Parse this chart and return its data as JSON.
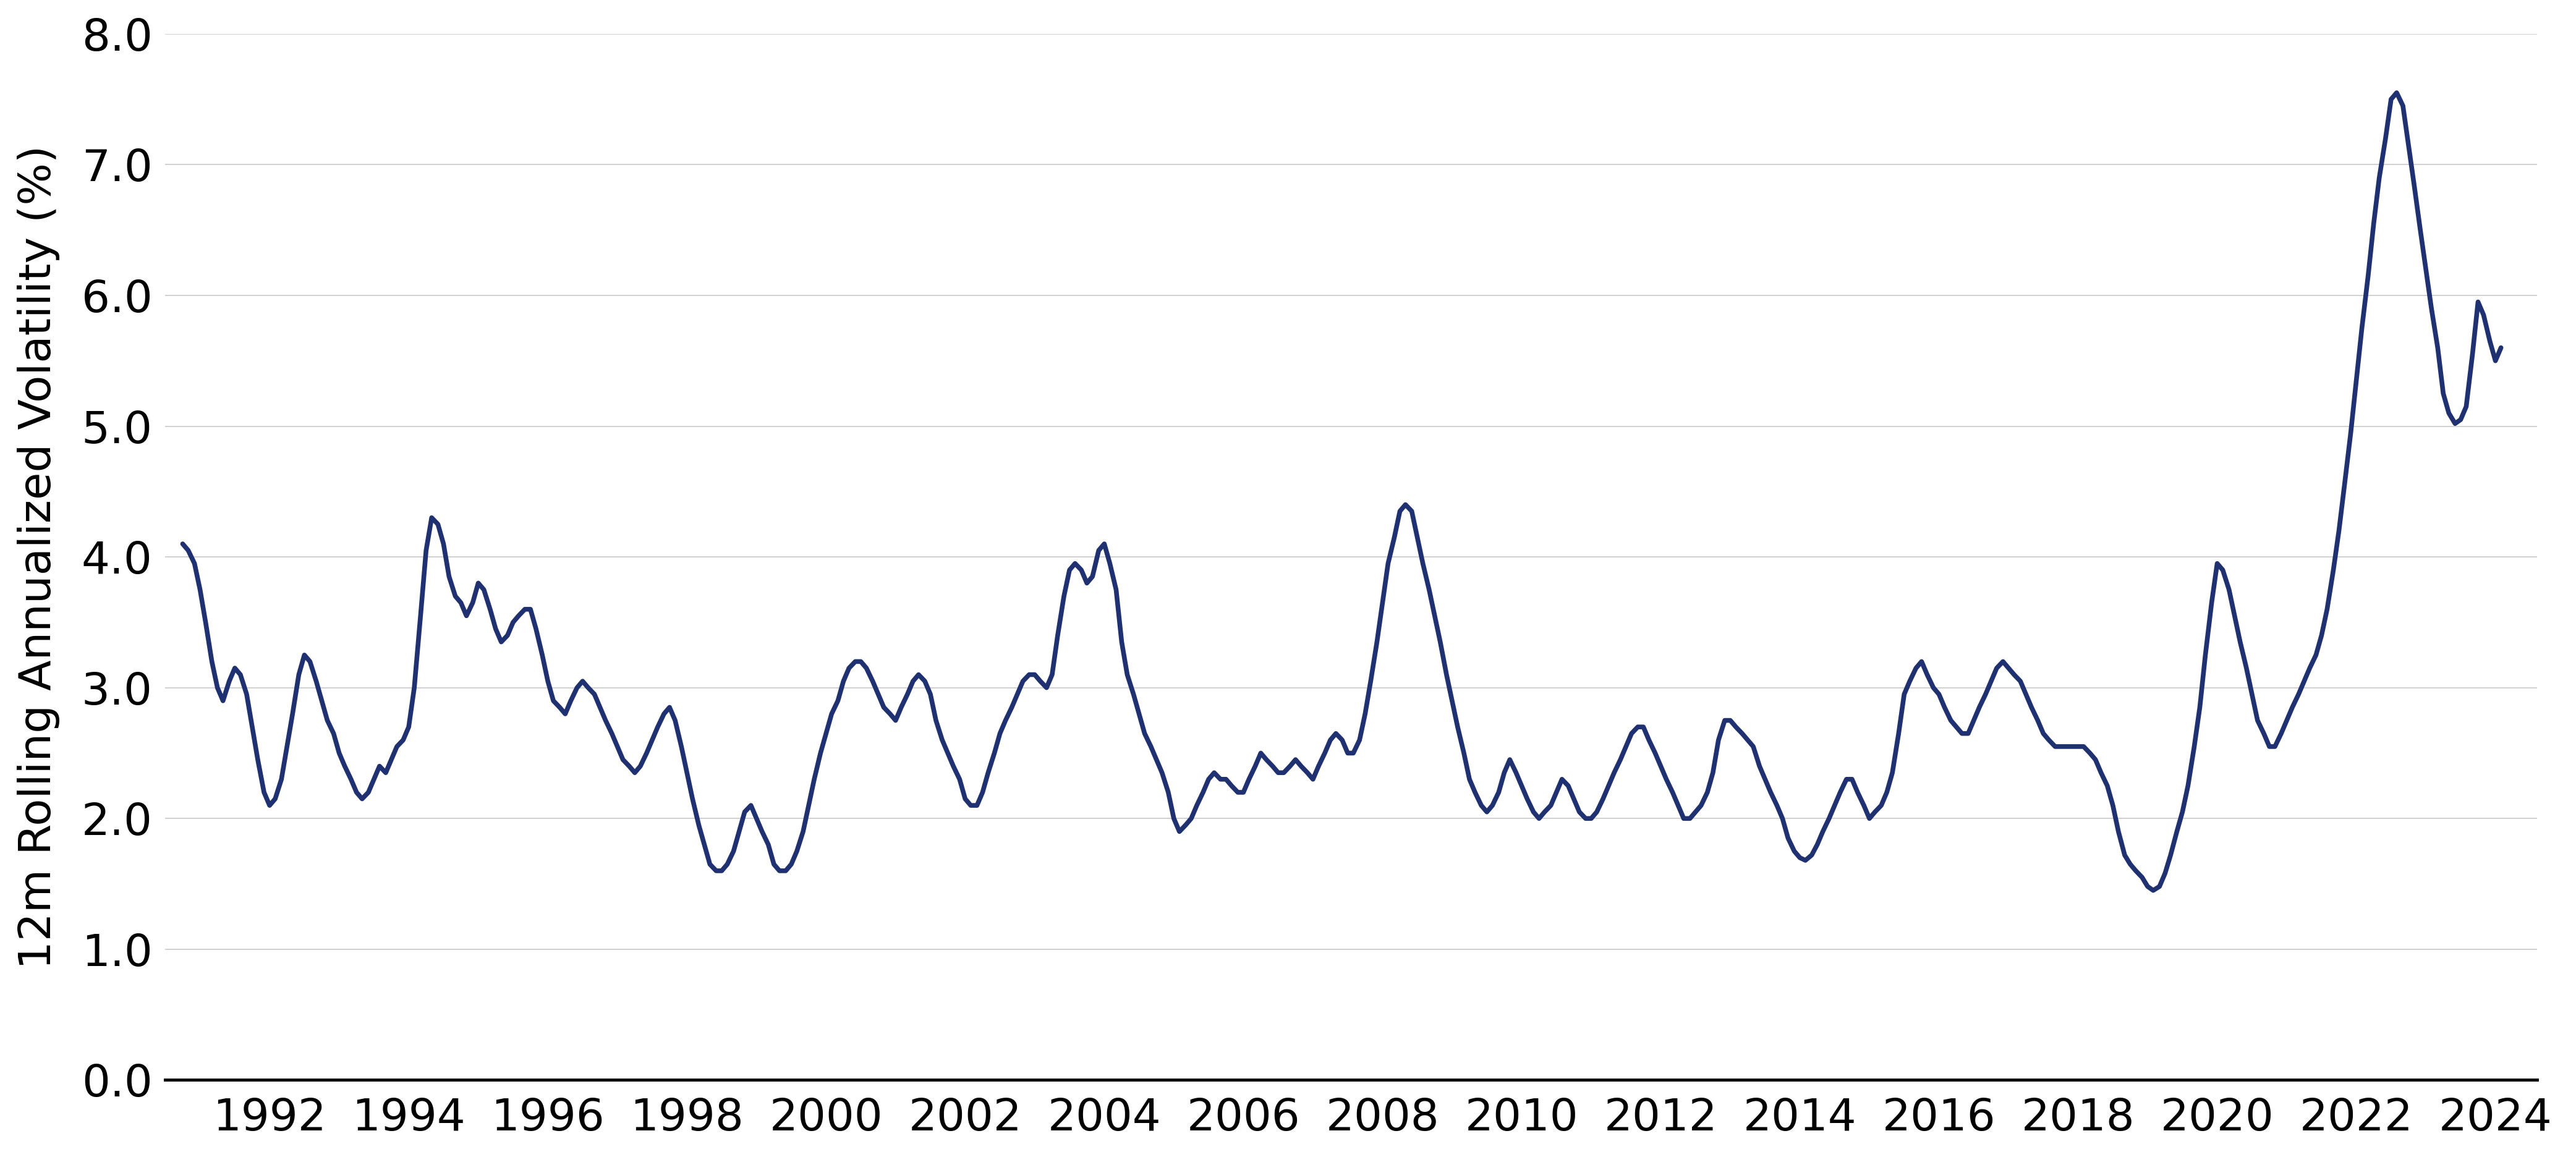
{
  "ylabel": "12m Rolling Annualized Volatility (%)",
  "line_color": "#1f3170",
  "line_width": 5.5,
  "background_color": "#ffffff",
  "grid_color": "#c8c8c8",
  "ylim": [
    0.0,
    8.0
  ],
  "yticks": [
    0.0,
    1.0,
    2.0,
    3.0,
    4.0,
    5.0,
    6.0,
    7.0,
    8.0
  ],
  "xlim_start": 1990.5,
  "xlim_end": 2024.6,
  "xtick_years": [
    1992,
    1994,
    1996,
    1998,
    2000,
    2002,
    2004,
    2006,
    2008,
    2010,
    2012,
    2014,
    2016,
    2018,
    2020,
    2022,
    2024
  ],
  "data": [
    [
      1990.75,
      4.1
    ],
    [
      1990.83,
      4.05
    ],
    [
      1990.92,
      3.95
    ],
    [
      1991.0,
      3.75
    ],
    [
      1991.08,
      3.5
    ],
    [
      1991.17,
      3.2
    ],
    [
      1991.25,
      3.0
    ],
    [
      1991.33,
      2.9
    ],
    [
      1991.42,
      3.05
    ],
    [
      1991.5,
      3.15
    ],
    [
      1991.58,
      3.1
    ],
    [
      1991.67,
      2.95
    ],
    [
      1991.75,
      2.7
    ],
    [
      1991.83,
      2.45
    ],
    [
      1991.92,
      2.2
    ],
    [
      1992.0,
      2.1
    ],
    [
      1992.08,
      2.15
    ],
    [
      1992.17,
      2.3
    ],
    [
      1992.25,
      2.55
    ],
    [
      1992.33,
      2.8
    ],
    [
      1992.42,
      3.1
    ],
    [
      1992.5,
      3.25
    ],
    [
      1992.58,
      3.2
    ],
    [
      1992.67,
      3.05
    ],
    [
      1992.75,
      2.9
    ],
    [
      1992.83,
      2.75
    ],
    [
      1992.92,
      2.65
    ],
    [
      1993.0,
      2.5
    ],
    [
      1993.08,
      2.4
    ],
    [
      1993.17,
      2.3
    ],
    [
      1993.25,
      2.2
    ],
    [
      1993.33,
      2.15
    ],
    [
      1993.42,
      2.2
    ],
    [
      1993.5,
      2.3
    ],
    [
      1993.58,
      2.4
    ],
    [
      1993.67,
      2.35
    ],
    [
      1993.75,
      2.45
    ],
    [
      1993.83,
      2.55
    ],
    [
      1993.92,
      2.6
    ],
    [
      1994.0,
      2.7
    ],
    [
      1994.08,
      3.0
    ],
    [
      1994.17,
      3.55
    ],
    [
      1994.25,
      4.05
    ],
    [
      1994.33,
      4.3
    ],
    [
      1994.42,
      4.25
    ],
    [
      1994.5,
      4.1
    ],
    [
      1994.58,
      3.85
    ],
    [
      1994.67,
      3.7
    ],
    [
      1994.75,
      3.65
    ],
    [
      1994.83,
      3.55
    ],
    [
      1994.92,
      3.65
    ],
    [
      1995.0,
      3.8
    ],
    [
      1995.08,
      3.75
    ],
    [
      1995.17,
      3.6
    ],
    [
      1995.25,
      3.45
    ],
    [
      1995.33,
      3.35
    ],
    [
      1995.42,
      3.4
    ],
    [
      1995.5,
      3.5
    ],
    [
      1995.58,
      3.55
    ],
    [
      1995.67,
      3.6
    ],
    [
      1995.75,
      3.6
    ],
    [
      1995.83,
      3.45
    ],
    [
      1995.92,
      3.25
    ],
    [
      1996.0,
      3.05
    ],
    [
      1996.08,
      2.9
    ],
    [
      1996.17,
      2.85
    ],
    [
      1996.25,
      2.8
    ],
    [
      1996.33,
      2.9
    ],
    [
      1996.42,
      3.0
    ],
    [
      1996.5,
      3.05
    ],
    [
      1996.58,
      3.0
    ],
    [
      1996.67,
      2.95
    ],
    [
      1996.75,
      2.85
    ],
    [
      1996.83,
      2.75
    ],
    [
      1996.92,
      2.65
    ],
    [
      1997.0,
      2.55
    ],
    [
      1997.08,
      2.45
    ],
    [
      1997.17,
      2.4
    ],
    [
      1997.25,
      2.35
    ],
    [
      1997.33,
      2.4
    ],
    [
      1997.42,
      2.5
    ],
    [
      1997.5,
      2.6
    ],
    [
      1997.58,
      2.7
    ],
    [
      1997.67,
      2.8
    ],
    [
      1997.75,
      2.85
    ],
    [
      1997.83,
      2.75
    ],
    [
      1997.92,
      2.55
    ],
    [
      1998.0,
      2.35
    ],
    [
      1998.08,
      2.15
    ],
    [
      1998.17,
      1.95
    ],
    [
      1998.25,
      1.8
    ],
    [
      1998.33,
      1.65
    ],
    [
      1998.42,
      1.6
    ],
    [
      1998.5,
      1.6
    ],
    [
      1998.58,
      1.65
    ],
    [
      1998.67,
      1.75
    ],
    [
      1998.75,
      1.9
    ],
    [
      1998.83,
      2.05
    ],
    [
      1998.92,
      2.1
    ],
    [
      1999.0,
      2.0
    ],
    [
      1999.08,
      1.9
    ],
    [
      1999.17,
      1.8
    ],
    [
      1999.25,
      1.65
    ],
    [
      1999.33,
      1.6
    ],
    [
      1999.42,
      1.6
    ],
    [
      1999.5,
      1.65
    ],
    [
      1999.58,
      1.75
    ],
    [
      1999.67,
      1.9
    ],
    [
      1999.75,
      2.1
    ],
    [
      1999.83,
      2.3
    ],
    [
      1999.92,
      2.5
    ],
    [
      2000.0,
      2.65
    ],
    [
      2000.08,
      2.8
    ],
    [
      2000.17,
      2.9
    ],
    [
      2000.25,
      3.05
    ],
    [
      2000.33,
      3.15
    ],
    [
      2000.42,
      3.2
    ],
    [
      2000.5,
      3.2
    ],
    [
      2000.58,
      3.15
    ],
    [
      2000.67,
      3.05
    ],
    [
      2000.75,
      2.95
    ],
    [
      2000.83,
      2.85
    ],
    [
      2000.92,
      2.8
    ],
    [
      2001.0,
      2.75
    ],
    [
      2001.08,
      2.85
    ],
    [
      2001.17,
      2.95
    ],
    [
      2001.25,
      3.05
    ],
    [
      2001.33,
      3.1
    ],
    [
      2001.42,
      3.05
    ],
    [
      2001.5,
      2.95
    ],
    [
      2001.58,
      2.75
    ],
    [
      2001.67,
      2.6
    ],
    [
      2001.75,
      2.5
    ],
    [
      2001.83,
      2.4
    ],
    [
      2001.92,
      2.3
    ],
    [
      2002.0,
      2.15
    ],
    [
      2002.08,
      2.1
    ],
    [
      2002.17,
      2.1
    ],
    [
      2002.25,
      2.2
    ],
    [
      2002.33,
      2.35
    ],
    [
      2002.42,
      2.5
    ],
    [
      2002.5,
      2.65
    ],
    [
      2002.58,
      2.75
    ],
    [
      2002.67,
      2.85
    ],
    [
      2002.75,
      2.95
    ],
    [
      2002.83,
      3.05
    ],
    [
      2002.92,
      3.1
    ],
    [
      2003.0,
      3.1
    ],
    [
      2003.08,
      3.05
    ],
    [
      2003.17,
      3.0
    ],
    [
      2003.25,
      3.1
    ],
    [
      2003.33,
      3.4
    ],
    [
      2003.42,
      3.7
    ],
    [
      2003.5,
      3.9
    ],
    [
      2003.58,
      3.95
    ],
    [
      2003.67,
      3.9
    ],
    [
      2003.75,
      3.8
    ],
    [
      2003.83,
      3.85
    ],
    [
      2003.92,
      4.05
    ],
    [
      2004.0,
      4.1
    ],
    [
      2004.08,
      3.95
    ],
    [
      2004.17,
      3.75
    ],
    [
      2004.25,
      3.35
    ],
    [
      2004.33,
      3.1
    ],
    [
      2004.42,
      2.95
    ],
    [
      2004.5,
      2.8
    ],
    [
      2004.58,
      2.65
    ],
    [
      2004.67,
      2.55
    ],
    [
      2004.75,
      2.45
    ],
    [
      2004.83,
      2.35
    ],
    [
      2004.92,
      2.2
    ],
    [
      2005.0,
      2.0
    ],
    [
      2005.08,
      1.9
    ],
    [
      2005.17,
      1.95
    ],
    [
      2005.25,
      2.0
    ],
    [
      2005.33,
      2.1
    ],
    [
      2005.42,
      2.2
    ],
    [
      2005.5,
      2.3
    ],
    [
      2005.58,
      2.35
    ],
    [
      2005.67,
      2.3
    ],
    [
      2005.75,
      2.3
    ],
    [
      2005.83,
      2.25
    ],
    [
      2005.92,
      2.2
    ],
    [
      2006.0,
      2.2
    ],
    [
      2006.08,
      2.3
    ],
    [
      2006.17,
      2.4
    ],
    [
      2006.25,
      2.5
    ],
    [
      2006.33,
      2.45
    ],
    [
      2006.42,
      2.4
    ],
    [
      2006.5,
      2.35
    ],
    [
      2006.58,
      2.35
    ],
    [
      2006.67,
      2.4
    ],
    [
      2006.75,
      2.45
    ],
    [
      2006.83,
      2.4
    ],
    [
      2006.92,
      2.35
    ],
    [
      2007.0,
      2.3
    ],
    [
      2007.08,
      2.4
    ],
    [
      2007.17,
      2.5
    ],
    [
      2007.25,
      2.6
    ],
    [
      2007.33,
      2.65
    ],
    [
      2007.42,
      2.6
    ],
    [
      2007.5,
      2.5
    ],
    [
      2007.58,
      2.5
    ],
    [
      2007.67,
      2.6
    ],
    [
      2007.75,
      2.8
    ],
    [
      2007.83,
      3.05
    ],
    [
      2007.92,
      3.35
    ],
    [
      2008.0,
      3.65
    ],
    [
      2008.08,
      3.95
    ],
    [
      2008.17,
      4.15
    ],
    [
      2008.25,
      4.35
    ],
    [
      2008.33,
      4.4
    ],
    [
      2008.42,
      4.35
    ],
    [
      2008.5,
      4.15
    ],
    [
      2008.58,
      3.95
    ],
    [
      2008.67,
      3.75
    ],
    [
      2008.75,
      3.55
    ],
    [
      2008.83,
      3.35
    ],
    [
      2008.92,
      3.1
    ],
    [
      2009.0,
      2.9
    ],
    [
      2009.08,
      2.7
    ],
    [
      2009.17,
      2.5
    ],
    [
      2009.25,
      2.3
    ],
    [
      2009.33,
      2.2
    ],
    [
      2009.42,
      2.1
    ],
    [
      2009.5,
      2.05
    ],
    [
      2009.58,
      2.1
    ],
    [
      2009.67,
      2.2
    ],
    [
      2009.75,
      2.35
    ],
    [
      2009.83,
      2.45
    ],
    [
      2009.92,
      2.35
    ],
    [
      2010.0,
      2.25
    ],
    [
      2010.08,
      2.15
    ],
    [
      2010.17,
      2.05
    ],
    [
      2010.25,
      2.0
    ],
    [
      2010.33,
      2.05
    ],
    [
      2010.42,
      2.1
    ],
    [
      2010.5,
      2.2
    ],
    [
      2010.58,
      2.3
    ],
    [
      2010.67,
      2.25
    ],
    [
      2010.75,
      2.15
    ],
    [
      2010.83,
      2.05
    ],
    [
      2010.92,
      2.0
    ],
    [
      2011.0,
      2.0
    ],
    [
      2011.08,
      2.05
    ],
    [
      2011.17,
      2.15
    ],
    [
      2011.25,
      2.25
    ],
    [
      2011.33,
      2.35
    ],
    [
      2011.42,
      2.45
    ],
    [
      2011.5,
      2.55
    ],
    [
      2011.58,
      2.65
    ],
    [
      2011.67,
      2.7
    ],
    [
      2011.75,
      2.7
    ],
    [
      2011.83,
      2.6
    ],
    [
      2011.92,
      2.5
    ],
    [
      2012.0,
      2.4
    ],
    [
      2012.08,
      2.3
    ],
    [
      2012.17,
      2.2
    ],
    [
      2012.25,
      2.1
    ],
    [
      2012.33,
      2.0
    ],
    [
      2012.42,
      2.0
    ],
    [
      2012.5,
      2.05
    ],
    [
      2012.58,
      2.1
    ],
    [
      2012.67,
      2.2
    ],
    [
      2012.75,
      2.35
    ],
    [
      2012.83,
      2.6
    ],
    [
      2012.92,
      2.75
    ],
    [
      2013.0,
      2.75
    ],
    [
      2013.08,
      2.7
    ],
    [
      2013.17,
      2.65
    ],
    [
      2013.25,
      2.6
    ],
    [
      2013.33,
      2.55
    ],
    [
      2013.42,
      2.4
    ],
    [
      2013.5,
      2.3
    ],
    [
      2013.58,
      2.2
    ],
    [
      2013.67,
      2.1
    ],
    [
      2013.75,
      2.0
    ],
    [
      2013.83,
      1.85
    ],
    [
      2013.92,
      1.75
    ],
    [
      2014.0,
      1.7
    ],
    [
      2014.08,
      1.68
    ],
    [
      2014.17,
      1.72
    ],
    [
      2014.25,
      1.8
    ],
    [
      2014.33,
      1.9
    ],
    [
      2014.42,
      2.0
    ],
    [
      2014.5,
      2.1
    ],
    [
      2014.58,
      2.2
    ],
    [
      2014.67,
      2.3
    ],
    [
      2014.75,
      2.3
    ],
    [
      2014.83,
      2.2
    ],
    [
      2014.92,
      2.1
    ],
    [
      2015.0,
      2.0
    ],
    [
      2015.08,
      2.05
    ],
    [
      2015.17,
      2.1
    ],
    [
      2015.25,
      2.2
    ],
    [
      2015.33,
      2.35
    ],
    [
      2015.42,
      2.65
    ],
    [
      2015.5,
      2.95
    ],
    [
      2015.58,
      3.05
    ],
    [
      2015.67,
      3.15
    ],
    [
      2015.75,
      3.2
    ],
    [
      2015.83,
      3.1
    ],
    [
      2015.92,
      3.0
    ],
    [
      2016.0,
      2.95
    ],
    [
      2016.08,
      2.85
    ],
    [
      2016.17,
      2.75
    ],
    [
      2016.25,
      2.7
    ],
    [
      2016.33,
      2.65
    ],
    [
      2016.42,
      2.65
    ],
    [
      2016.5,
      2.75
    ],
    [
      2016.58,
      2.85
    ],
    [
      2016.67,
      2.95
    ],
    [
      2016.75,
      3.05
    ],
    [
      2016.83,
      3.15
    ],
    [
      2016.92,
      3.2
    ],
    [
      2017.0,
      3.15
    ],
    [
      2017.08,
      3.1
    ],
    [
      2017.17,
      3.05
    ],
    [
      2017.25,
      2.95
    ],
    [
      2017.33,
      2.85
    ],
    [
      2017.42,
      2.75
    ],
    [
      2017.5,
      2.65
    ],
    [
      2017.58,
      2.6
    ],
    [
      2017.67,
      2.55
    ],
    [
      2017.75,
      2.55
    ],
    [
      2017.83,
      2.55
    ],
    [
      2017.92,
      2.55
    ],
    [
      2018.0,
      2.55
    ],
    [
      2018.08,
      2.55
    ],
    [
      2018.17,
      2.5
    ],
    [
      2018.25,
      2.45
    ],
    [
      2018.33,
      2.35
    ],
    [
      2018.42,
      2.25
    ],
    [
      2018.5,
      2.1
    ],
    [
      2018.58,
      1.9
    ],
    [
      2018.67,
      1.72
    ],
    [
      2018.75,
      1.65
    ],
    [
      2018.83,
      1.6
    ],
    [
      2018.92,
      1.55
    ],
    [
      2019.0,
      1.48
    ],
    [
      2019.08,
      1.45
    ],
    [
      2019.17,
      1.48
    ],
    [
      2019.25,
      1.58
    ],
    [
      2019.33,
      1.72
    ],
    [
      2019.42,
      1.9
    ],
    [
      2019.5,
      2.05
    ],
    [
      2019.58,
      2.25
    ],
    [
      2019.67,
      2.55
    ],
    [
      2019.75,
      2.85
    ],
    [
      2019.83,
      3.25
    ],
    [
      2019.92,
      3.65
    ],
    [
      2020.0,
      3.95
    ],
    [
      2020.08,
      3.9
    ],
    [
      2020.17,
      3.75
    ],
    [
      2020.25,
      3.55
    ],
    [
      2020.33,
      3.35
    ],
    [
      2020.42,
      3.15
    ],
    [
      2020.5,
      2.95
    ],
    [
      2020.58,
      2.75
    ],
    [
      2020.67,
      2.65
    ],
    [
      2020.75,
      2.55
    ],
    [
      2020.83,
      2.55
    ],
    [
      2020.92,
      2.65
    ],
    [
      2021.0,
      2.75
    ],
    [
      2021.08,
      2.85
    ],
    [
      2021.17,
      2.95
    ],
    [
      2021.25,
      3.05
    ],
    [
      2021.33,
      3.15
    ],
    [
      2021.42,
      3.25
    ],
    [
      2021.5,
      3.4
    ],
    [
      2021.58,
      3.6
    ],
    [
      2021.67,
      3.9
    ],
    [
      2021.75,
      4.2
    ],
    [
      2021.83,
      4.55
    ],
    [
      2021.92,
      4.95
    ],
    [
      2022.0,
      5.35
    ],
    [
      2022.08,
      5.75
    ],
    [
      2022.17,
      6.15
    ],
    [
      2022.25,
      6.55
    ],
    [
      2022.33,
      6.9
    ],
    [
      2022.42,
      7.2
    ],
    [
      2022.5,
      7.5
    ],
    [
      2022.58,
      7.55
    ],
    [
      2022.67,
      7.45
    ],
    [
      2022.75,
      7.15
    ],
    [
      2022.83,
      6.85
    ],
    [
      2022.92,
      6.5
    ],
    [
      2023.0,
      6.2
    ],
    [
      2023.08,
      5.9
    ],
    [
      2023.17,
      5.6
    ],
    [
      2023.25,
      5.25
    ],
    [
      2023.33,
      5.1
    ],
    [
      2023.42,
      5.02
    ],
    [
      2023.5,
      5.05
    ],
    [
      2023.58,
      5.15
    ],
    [
      2023.67,
      5.55
    ],
    [
      2023.75,
      5.95
    ],
    [
      2023.83,
      5.85
    ],
    [
      2023.92,
      5.65
    ],
    [
      2024.0,
      5.5
    ],
    [
      2024.08,
      5.6
    ]
  ]
}
